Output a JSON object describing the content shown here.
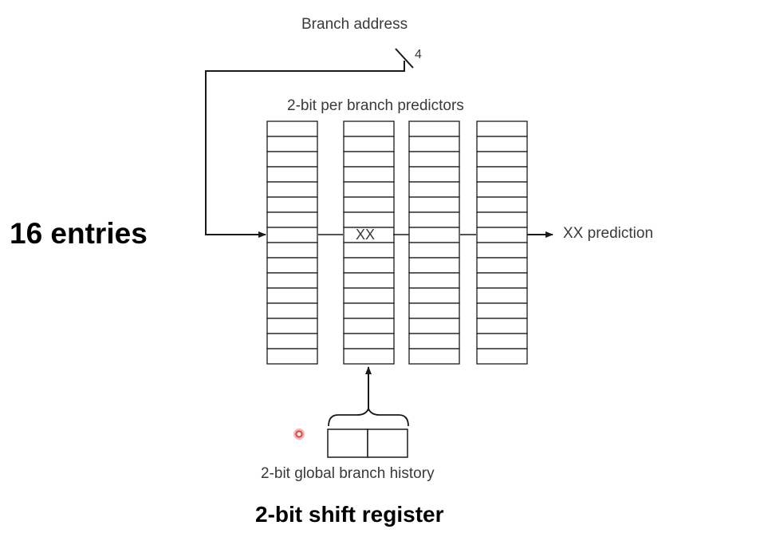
{
  "title": "2-bit per branch predictors",
  "branch_address": {
    "label": "Branch address",
    "bit_width": "4"
  },
  "left_caption": "16 entries",
  "selected_entry": "XX",
  "prediction_label": "XX prediction",
  "history_label": "2-bit global branch history",
  "bottom_caption": "2-bit shift register",
  "table_count": 4,
  "entries_per_table": 16,
  "selected_entry_index": 7,
  "line_color": "#1a1a1a"
}
